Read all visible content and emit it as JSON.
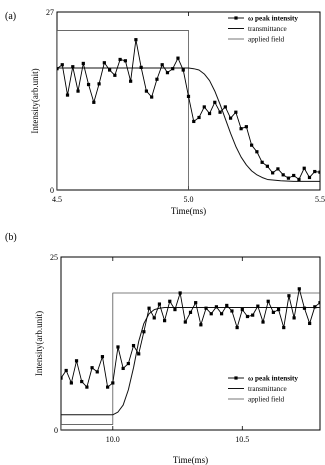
{
  "chart_data": [
    {
      "type": "line",
      "panel_label": "(a)",
      "xlabel": "Time(ms)",
      "ylabel": "Intensity(arb.unit)",
      "xlim": [
        4.5,
        5.5
      ],
      "ylim": [
        0,
        27
      ],
      "x_ticks": [
        4.5,
        5.0,
        5.5
      ],
      "x_tick_labels": [
        "4.5",
        "5.0",
        "5.5"
      ],
      "y_ticks": [
        0,
        27
      ],
      "y_tick_labels": [
        "0",
        "27"
      ],
      "legend": {
        "placement": "top-right",
        "entries": [
          "ω peak intensity",
          "transmittance",
          "applied field"
        ]
      },
      "series": [
        {
          "name": "ω peak intensity",
          "marker": "square",
          "x": [
            4.5,
            4.52,
            4.54,
            4.56,
            4.58,
            4.6,
            4.62,
            4.64,
            4.66,
            4.68,
            4.7,
            4.72,
            4.74,
            4.76,
            4.78,
            4.8,
            4.82,
            4.84,
            4.86,
            4.88,
            4.9,
            4.92,
            4.94,
            4.96,
            4.98,
            5.0,
            5.02,
            5.04,
            5.06,
            5.08,
            5.1,
            5.12,
            5.14,
            5.16,
            5.18,
            5.2,
            5.22,
            5.24,
            5.26,
            5.28,
            5.3,
            5.32,
            5.34,
            5.36,
            5.38,
            5.4,
            5.42,
            5.44,
            5.46,
            5.48,
            5.5
          ],
          "values": [
            18.4,
            19.0,
            14.4,
            18.7,
            15.0,
            19.2,
            16.0,
            13.3,
            16.1,
            19.3,
            18.2,
            17.4,
            19.8,
            19.6,
            16.5,
            22.8,
            18.6,
            15.0,
            14.1,
            16.8,
            19.0,
            17.8,
            18.4,
            20.0,
            18.2,
            14.2,
            10.4,
            11.0,
            12.6,
            11.6,
            13.3,
            11.8,
            12.6,
            10.9,
            11.8,
            9.3,
            9.6,
            6.8,
            5.8,
            4.2,
            3.6,
            2.6,
            3.2,
            2.3,
            1.8,
            2.2,
            1.6,
            3.3,
            1.9,
            2.8,
            2.7
          ]
        },
        {
          "name": "transmittance",
          "x": [
            4.5,
            4.6,
            4.7,
            4.8,
            4.9,
            5.0,
            5.02,
            5.04,
            5.06,
            5.08,
            5.1,
            5.12,
            5.14,
            5.16,
            5.18,
            5.2,
            5.22,
            5.24,
            5.26,
            5.28,
            5.3,
            5.35,
            5.4,
            5.45,
            5.5
          ],
          "values": [
            18.5,
            18.5,
            18.5,
            18.5,
            18.5,
            18.5,
            18.4,
            18.2,
            17.6,
            16.6,
            15.0,
            13.0,
            10.8,
            8.6,
            6.6,
            5.0,
            3.8,
            2.9,
            2.3,
            1.9,
            1.6,
            1.4,
            1.3,
            1.3,
            1.3
          ]
        },
        {
          "name": "applied field",
          "x": [
            4.5,
            4.5,
            5.0,
            5.0
          ],
          "values": [
            0,
            24.2,
            24.2,
            0
          ]
        }
      ]
    },
    {
      "type": "line",
      "panel_label": "(b)",
      "xlabel": "Time(ms)",
      "ylabel": "Intensity(arb.unit)",
      "xlim": [
        9.8,
        10.8
      ],
      "ylim": [
        0,
        25
      ],
      "x_ticks": [
        10.0,
        10.5
      ],
      "x_tick_labels": [
        "10.0",
        "10.5"
      ],
      "y_ticks": [
        0,
        25
      ],
      "y_tick_labels": [
        "0",
        "25"
      ],
      "legend": {
        "placement": "bottom-right",
        "entries": [
          "ω peak intensity",
          "transmittance",
          "applied field"
        ]
      },
      "series": [
        {
          "name": "ω peak intensity",
          "marker": "square",
          "x": [
            9.8,
            9.82,
            9.84,
            9.86,
            9.88,
            9.9,
            9.92,
            9.94,
            9.96,
            9.98,
            10.0,
            10.02,
            10.04,
            10.06,
            10.08,
            10.1,
            10.12,
            10.14,
            10.16,
            10.18,
            10.2,
            10.22,
            10.24,
            10.26,
            10.28,
            10.3,
            10.32,
            10.34,
            10.36,
            10.38,
            10.4,
            10.42,
            10.44,
            10.46,
            10.48,
            10.5,
            10.52,
            10.54,
            10.56,
            10.58,
            10.6,
            10.62,
            10.64,
            10.66,
            10.68,
            10.7,
            10.72,
            10.74,
            10.76,
            10.78,
            10.8
          ],
          "values": [
            7.5,
            8.6,
            6.8,
            10.0,
            7.0,
            6.2,
            9.0,
            8.4,
            10.6,
            6.2,
            6.8,
            12.0,
            8.9,
            9.6,
            12.2,
            11.0,
            14.2,
            17.6,
            16.2,
            18.2,
            15.8,
            18.6,
            17.4,
            19.8,
            15.6,
            17.0,
            18.4,
            15.2,
            17.6,
            16.8,
            17.8,
            16.8,
            18.0,
            17.2,
            14.8,
            17.4,
            16.4,
            16.6,
            17.9,
            15.6,
            18.6,
            17.0,
            17.4,
            14.8,
            19.4,
            16.2,
            20.4,
            17.6,
            15.4,
            17.8,
            18.4
          ]
        },
        {
          "name": "transmittance",
          "x": [
            9.8,
            9.9,
            10.0,
            10.02,
            10.04,
            10.06,
            10.08,
            10.1,
            10.12,
            10.14,
            10.16,
            10.18,
            10.2,
            10.25,
            10.3,
            10.4,
            10.5,
            10.6,
            10.7,
            10.8
          ],
          "values": [
            2.2,
            2.2,
            2.2,
            2.6,
            3.6,
            5.8,
            9.0,
            12.8,
            15.4,
            16.8,
            17.4,
            17.6,
            17.7,
            17.7,
            17.7,
            17.7,
            17.7,
            17.7,
            17.7,
            17.7
          ]
        },
        {
          "name": "applied field",
          "x": [
            9.8,
            9.8,
            10.0,
            10.0,
            10.8
          ],
          "values": [
            0,
            0.8,
            0.8,
            19.8,
            19.8
          ]
        }
      ]
    }
  ]
}
